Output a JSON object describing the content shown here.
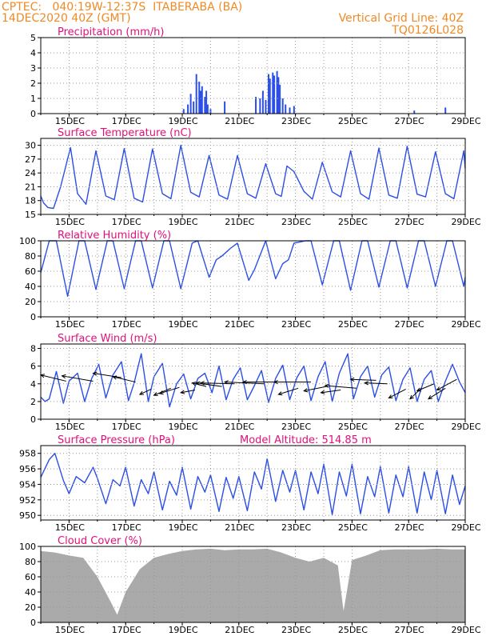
{
  "header": {
    "line1_left": "CPTEC:   040:19W-12:37S  ITABERABA (BA)",
    "line2_left": "14DEC2020 40Z (GMT)",
    "line1_right": "Vertical Grid Line: 40Z",
    "line2_right": "TQ0126L028"
  },
  "x_ticks": [
    "15DEC",
    "17DEC",
    "19DEC",
    "21DEC",
    "23DEC",
    "25DEC",
    "27DEC",
    "29DEC"
  ],
  "colors": {
    "header": "#f08a24",
    "title": "#e0107a",
    "series": "#2a4ee8",
    "cloud": "#aaaaaa",
    "grid": "#999999"
  },
  "chart_data": [
    {
      "type": "bar",
      "title": "Precipitation (mm/h)",
      "ylim": [
        0,
        5
      ],
      "yticks": [
        "0",
        "1",
        "2",
        "3",
        "4",
        "5"
      ],
      "xlim": [
        14.0,
        29.0
      ],
      "grid": true,
      "x": [
        19.05,
        19.2,
        19.3,
        19.4,
        19.5,
        19.6,
        19.65,
        19.7,
        19.8,
        19.85,
        19.9,
        20.0,
        20.5,
        21.6,
        21.75,
        21.85,
        21.95,
        22.05,
        22.1,
        22.2,
        22.25,
        22.35,
        22.4,
        22.45,
        22.55,
        22.65,
        22.8,
        22.95,
        27.2,
        28.3
      ],
      "values": [
        0.3,
        0.6,
        1.3,
        0.8,
        2.6,
        2.1,
        1.5,
        1.8,
        1.1,
        1.5,
        0.6,
        0.3,
        0.8,
        1.1,
        1.0,
        1.5,
        0.9,
        2.6,
        2.3,
        2.7,
        2.5,
        2.8,
        2.4,
        1.9,
        1.0,
        0.6,
        0.4,
        0.5,
        0.2,
        0.4
      ]
    },
    {
      "type": "line",
      "title": "Surface Temperature (nC)",
      "ylim": [
        15,
        31.5
      ],
      "yticks": [
        "15",
        "18",
        "21",
        "24",
        "27",
        "30"
      ],
      "xlim": [
        14.0,
        29.0
      ],
      "grid": true,
      "x": [
        14.0,
        14.1,
        14.25,
        14.45,
        14.7,
        15.05,
        15.3,
        15.6,
        15.95,
        16.3,
        16.6,
        16.95,
        17.3,
        17.6,
        17.95,
        18.3,
        18.6,
        18.95,
        19.3,
        19.6,
        19.95,
        20.3,
        20.6,
        20.95,
        21.3,
        21.6,
        21.95,
        22.3,
        22.5,
        22.7,
        22.95,
        23.3,
        23.6,
        23.95,
        24.3,
        24.6,
        24.95,
        25.3,
        25.6,
        25.95,
        26.3,
        26.6,
        26.95,
        27.3,
        27.6,
        27.95,
        28.3,
        28.6,
        28.95,
        29.0
      ],
      "values": [
        19,
        17.5,
        16.5,
        16.3,
        21,
        29.5,
        19.5,
        17.2,
        28.8,
        19,
        18.2,
        29.3,
        18.5,
        17.7,
        29.2,
        19.5,
        18.4,
        30,
        19.8,
        18.8,
        27.8,
        19.2,
        18.3,
        27.8,
        19.5,
        18.5,
        26,
        19.5,
        18.9,
        25.5,
        24.3,
        20,
        18.3,
        26.3,
        19.9,
        18.8,
        28.8,
        19.5,
        18.3,
        29.4,
        19.2,
        18.5,
        29.8,
        19.4,
        18.8,
        28.6,
        19.5,
        18.4,
        28.8,
        25
      ]
    },
    {
      "type": "line",
      "title": "Relative Humidity (%)",
      "ylim": [
        0,
        100
      ],
      "yticks": [
        "0",
        "20",
        "40",
        "60",
        "80",
        "100"
      ],
      "xlim": [
        14.0,
        29.0
      ],
      "grid": true,
      "x": [
        14.0,
        14.3,
        14.55,
        14.95,
        15.35,
        15.55,
        15.95,
        16.35,
        16.55,
        16.95,
        17.35,
        17.55,
        17.95,
        18.35,
        18.55,
        18.95,
        19.35,
        19.55,
        19.95,
        20.2,
        20.4,
        20.55,
        20.7,
        20.95,
        21.35,
        21.55,
        21.95,
        22.3,
        22.55,
        22.75,
        22.95,
        23.35,
        23.55,
        23.95,
        24.35,
        24.55,
        24.95,
        25.35,
        25.55,
        25.95,
        26.35,
        26.55,
        26.95,
        27.35,
        27.55,
        27.95,
        28.35,
        28.55,
        28.95,
        29.0
      ],
      "values": [
        58,
        100,
        100,
        27,
        100,
        100,
        36,
        100,
        100,
        37,
        100,
        100,
        38,
        100,
        100,
        37,
        97,
        100,
        52,
        75,
        80,
        85,
        90,
        97,
        48,
        62,
        100,
        50,
        70,
        75,
        97,
        100,
        100,
        42,
        100,
        100,
        35,
        100,
        100,
        39,
        100,
        100,
        38,
        100,
        100,
        40,
        100,
        100,
        40,
        52
      ]
    },
    {
      "type": "line",
      "title": "Surface Wind (m/s)",
      "ylim": [
        0,
        8.5
      ],
      "yticks": [
        "0",
        "2",
        "4",
        "6",
        "8"
      ],
      "xlim": [
        14.0,
        29.0
      ],
      "grid": true,
      "x": [
        14.0,
        14.15,
        14.3,
        14.55,
        14.8,
        15.0,
        15.3,
        15.55,
        15.8,
        16.05,
        16.3,
        16.55,
        16.85,
        17.1,
        17.3,
        17.55,
        17.8,
        18.0,
        18.3,
        18.55,
        18.8,
        19.05,
        19.3,
        19.55,
        19.8,
        20.05,
        20.3,
        20.55,
        20.8,
        21.05,
        21.3,
        21.55,
        21.8,
        22.05,
        22.3,
        22.55,
        22.8,
        23.05,
        23.3,
        23.55,
        23.8,
        24.05,
        24.3,
        24.55,
        24.85,
        25.05,
        25.3,
        25.55,
        25.8,
        26.05,
        26.3,
        26.55,
        26.8,
        27.05,
        27.3,
        27.55,
        27.8,
        28.05,
        28.3,
        28.55,
        28.8,
        29.0
      ],
      "values": [
        2.5,
        2.0,
        2.3,
        5.4,
        1.8,
        4.3,
        5.2,
        2.0,
        4.6,
        6.2,
        2.4,
        5.0,
        6.5,
        2.1,
        4.1,
        7.4,
        2.0,
        4.8,
        6.3,
        1.4,
        4.0,
        5.1,
        2.3,
        4.6,
        5.2,
        3.0,
        6.0,
        2.2,
        4.5,
        5.8,
        2.2,
        3.8,
        5.5,
        1.9,
        4.6,
        6.1,
        2.2,
        4.7,
        6.0,
        2.1,
        4.8,
        6.5,
        2.0,
        5.2,
        7.4,
        2.3,
        4.8,
        6.0,
        2.5,
        5.0,
        5.9,
        2.1,
        4.5,
        5.8,
        2.0,
        4.5,
        5.5,
        2.0,
        4.3,
        6.2,
        4.2,
        3.0
      ],
      "arrows": {
        "x": [
          14.9,
          15.85,
          16.85,
          17.35,
          17.9,
          18.6,
          18.9,
          19.45,
          19.85,
          20.4,
          20.85,
          21.9,
          22.55,
          23.1,
          23.55,
          24.1,
          24.6,
          25.15,
          25.85,
          26.25,
          26.9,
          27.45,
          27.9,
          28.3,
          28.7
        ],
        "y": [
          4.3,
          4.3,
          4.7,
          4.2,
          3.4,
          3.5,
          3.6,
          3.3,
          3.7,
          3.7,
          4.0,
          4.0,
          4.2,
          3.5,
          4.2,
          3.7,
          3.3,
          3.5,
          4.4,
          4.0,
          3.4,
          3.5,
          4.0,
          3.5,
          4.5
        ],
        "dx": [
          -0.9,
          -1.1,
          -1.0,
          -0.8,
          -0.4,
          -0.6,
          -0.7,
          -0.5,
          -0.5,
          -0.9,
          -1.2,
          -1.4,
          -1.4,
          -0.7,
          -1.3,
          -0.8,
          -0.7,
          -1.1,
          -0.9,
          -0.8,
          -0.6,
          -0.4,
          -0.6,
          -0.6,
          -0.7
        ],
        "dy": [
          0.7,
          0.6,
          0.5,
          0.6,
          -0.6,
          -0.8,
          -0.7,
          -0.3,
          0.4,
          0.4,
          0.1,
          0.2,
          0.0,
          -0.7,
          0.0,
          -0.5,
          -0.3,
          0.3,
          0.1,
          0.1,
          -1.0,
          -1.2,
          -0.8,
          -1.2,
          -1.2
        ]
      }
    },
    {
      "type": "line",
      "title": "Surface Pressure (hPa)",
      "subtitle": "Model Altitude: 514.85  m",
      "ylim": [
        949.4,
        959
      ],
      "yticks": [
        "950",
        "952",
        "954",
        "956",
        "958"
      ],
      "xlim": [
        14.0,
        29.0
      ],
      "grid": true,
      "x": [
        14.0,
        14.3,
        14.5,
        14.8,
        15.0,
        15.25,
        15.55,
        15.85,
        16.0,
        16.3,
        16.55,
        16.8,
        17.0,
        17.3,
        17.55,
        17.8,
        18.0,
        18.3,
        18.55,
        18.8,
        19.0,
        19.3,
        19.55,
        19.8,
        20.0,
        20.3,
        20.55,
        20.8,
        21.0,
        21.3,
        21.55,
        21.8,
        22.0,
        22.3,
        22.55,
        22.8,
        23.0,
        23.3,
        23.55,
        23.8,
        24.0,
        24.3,
        24.55,
        24.8,
        25.0,
        25.3,
        25.55,
        25.8,
        26.0,
        26.3,
        26.55,
        26.8,
        27.0,
        27.3,
        27.55,
        27.8,
        28.0,
        28.3,
        28.55,
        28.8,
        29.0
      ],
      "values": [
        954.9,
        957.2,
        958.0,
        954.5,
        952.8,
        955.0,
        954.2,
        956.2,
        954.8,
        951.5,
        954.6,
        953.8,
        956.2,
        951.2,
        954.6,
        952.8,
        955.6,
        950.7,
        954.4,
        952.6,
        956.2,
        950.8,
        955.0,
        953.0,
        955.2,
        950.5,
        954.9,
        952.2,
        955.0,
        950.6,
        955.6,
        953.4,
        957.3,
        951.8,
        955.8,
        953.0,
        955.8,
        950.7,
        955.6,
        952.8,
        956.6,
        950.1,
        955.6,
        952.5,
        956.6,
        950.2,
        955.0,
        952.4,
        956.3,
        950.3,
        955.2,
        952.4,
        956.3,
        950.3,
        955.6,
        952.0,
        955.8,
        950.2,
        955.2,
        951.4,
        953.8
      ]
    },
    {
      "type": "bar",
      "title": "Cloud Cover (%)",
      "ylim": [
        0,
        100
      ],
      "yticks": [
        "0",
        "20",
        "40",
        "60",
        "80",
        "100"
      ],
      "xlim": [
        14.0,
        29.0
      ],
      "grid": true,
      "x": [
        14.0,
        14.5,
        15.0,
        15.5,
        16.0,
        16.5,
        16.7,
        17.0,
        17.5,
        18.0,
        18.5,
        19.0,
        19.5,
        20.0,
        20.5,
        21.0,
        21.5,
        22.0,
        22.5,
        23.0,
        23.5,
        24.0,
        24.5,
        24.7,
        25.0,
        25.5,
        26.0,
        26.5,
        27.0,
        27.5,
        28.0,
        28.5,
        29.0
      ],
      "values": [
        94,
        92,
        88,
        85,
        60,
        25,
        10,
        40,
        70,
        85,
        90,
        94,
        96,
        97,
        95,
        96,
        96,
        97,
        92,
        85,
        80,
        85,
        75,
        15,
        82,
        88,
        95,
        96,
        96,
        96,
        97,
        96,
        96
      ]
    }
  ]
}
